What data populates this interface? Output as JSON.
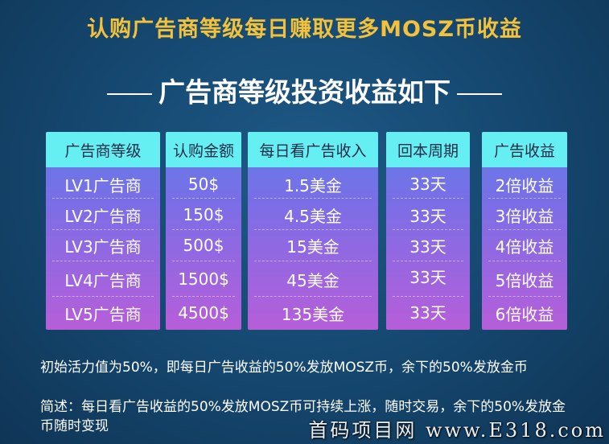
{
  "headline": "认购广告商等级每日赚取更多MOSZ币收益",
  "subheading": "广告商等级投资收益如下",
  "table": {
    "columns": [
      {
        "header": "广告商等级",
        "cells": [
          "LV1广告商",
          "LV2广告商",
          "LV3广告商",
          "LV4广告商",
          "LV5广告商"
        ]
      },
      {
        "header": "认购金额",
        "cells": [
          "50$",
          "150$",
          "500$",
          "1500$",
          "4500$"
        ]
      },
      {
        "header": "每日看广告收入",
        "cells": [
          "1.5美金",
          "4.5美金",
          "15美金",
          "45美金",
          "135美金"
        ]
      },
      {
        "header": "回本周期",
        "cells": [
          "33天",
          "33天",
          "33天",
          "33天",
          "33天"
        ]
      },
      {
        "header": "广告收益",
        "cells": [
          "2倍收益",
          "3倍收益",
          "4倍收益",
          "5倍收益",
          "6倍收益"
        ]
      }
    ]
  },
  "notes": {
    "line1": "初始活力值为50%，即每日广告收益的50%发放MOSZ币，余下的50%发放金币",
    "line2": "简述：每日看广告收益的50%发放MOSZ币可持续上涨，随时交易，余下的50%发放金币随时变现"
  },
  "watermark": "首码项目网 www.E318.com",
  "colors": {
    "headline": "#f3c23a",
    "header_cell": "#65eff3",
    "column_top": "#5f7fe6",
    "column_bottom": "#b65ed8"
  }
}
